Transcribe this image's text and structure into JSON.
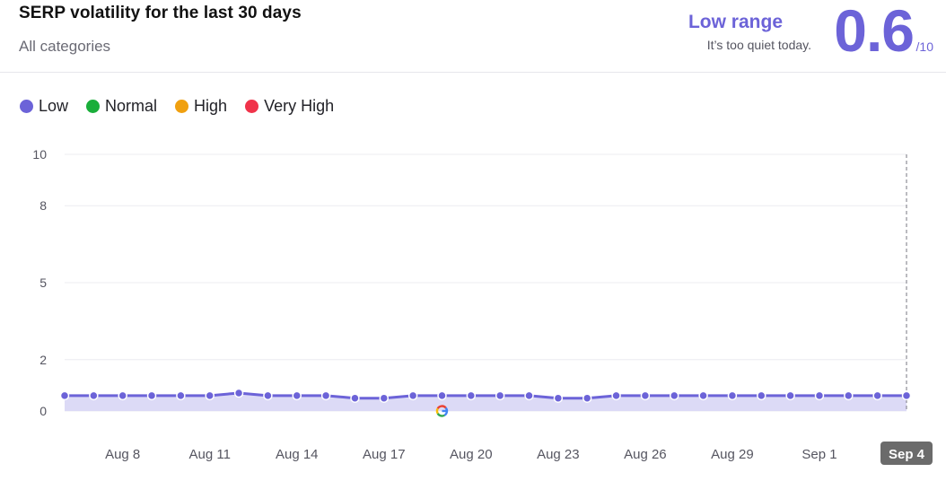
{
  "header": {
    "title": "SERP volatility for the last 30 days",
    "subtitle": "All categories",
    "range_label": "Low range",
    "range_note": "It’s too quiet today.",
    "score": "0.6",
    "score_max": "/10"
  },
  "legend": [
    {
      "label": "Low",
      "color": "#6c63d8"
    },
    {
      "label": "Normal",
      "color": "#1aae3a"
    },
    {
      "label": "High",
      "color": "#f0a010"
    },
    {
      "label": "Very High",
      "color": "#f0334a"
    }
  ],
  "colors": {
    "accent": "#6c63d8",
    "area_fill": "#dcdaf6",
    "grid": "#ececf0"
  },
  "chart_data": {
    "type": "line",
    "title": "SERP volatility for the last 30 days",
    "ylim": [
      0,
      10
    ],
    "y_ticks": [
      0,
      2,
      5,
      8,
      10
    ],
    "x_tick_labels": [
      "Aug 8",
      "Aug 11",
      "Aug 14",
      "Aug 17",
      "Aug 20",
      "Aug 23",
      "Aug 26",
      "Aug 29",
      "Sep 1",
      "Sep 4"
    ],
    "highlighted_x": "Sep 4",
    "grid": true,
    "legend_position": "top-left",
    "annotation_icon": "google-update-icon",
    "annotation_x": "Aug 19",
    "series": [
      {
        "name": "Low",
        "x": [
          "Aug 6",
          "Aug 7",
          "Aug 8",
          "Aug 9",
          "Aug 10",
          "Aug 11",
          "Aug 12",
          "Aug 13",
          "Aug 14",
          "Aug 15",
          "Aug 16",
          "Aug 17",
          "Aug 18",
          "Aug 19",
          "Aug 20",
          "Aug 21",
          "Aug 22",
          "Aug 23",
          "Aug 24",
          "Aug 25",
          "Aug 26",
          "Aug 27",
          "Aug 28",
          "Aug 29",
          "Aug 30",
          "Aug 31",
          "Sep 1",
          "Sep 2",
          "Sep 3",
          "Sep 4"
        ],
        "values": [
          0.6,
          0.6,
          0.6,
          0.6,
          0.6,
          0.6,
          0.7,
          0.6,
          0.6,
          0.6,
          0.5,
          0.5,
          0.6,
          0.6,
          0.6,
          0.6,
          0.6,
          0.5,
          0.5,
          0.6,
          0.6,
          0.6,
          0.6,
          0.6,
          0.6,
          0.6,
          0.6,
          0.6,
          0.6,
          0.6
        ]
      }
    ]
  }
}
